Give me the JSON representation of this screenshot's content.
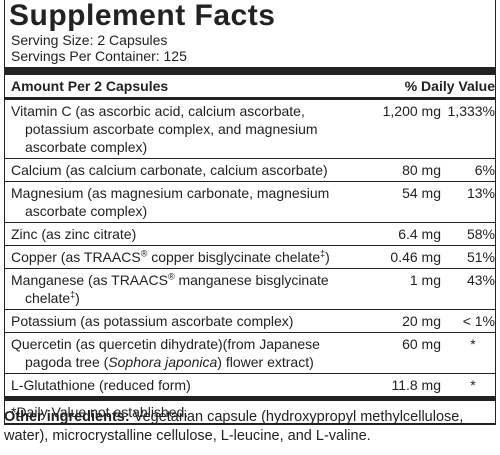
{
  "header": {
    "title": "Supplement Facts",
    "serving_size": "Serving Size: 2 Capsules",
    "servings_per_container": "Servings Per Container: 125"
  },
  "table": {
    "headers": [
      "Amount Per 2 Capsules",
      "% Daily Value"
    ],
    "rows": [
      {
        "name": "Vitamin C (as ascorbic acid, calcium ascorbate, potassium ascorbate complex, and magnesium ascorbate complex)",
        "amount": "1,200 mg",
        "daily_value": "1,333%"
      },
      {
        "name": "Calcium (as calcium carbonate, calcium ascorbate)",
        "amount": "80 mg",
        "daily_value": "6%"
      },
      {
        "name": "Magnesium (as magnesium carbonate, magnesium ascorbate complex)",
        "amount": "54 mg",
        "daily_value": "13%"
      },
      {
        "name": "Zinc (as zinc citrate)",
        "amount": "6.4 mg",
        "daily_value": "58%"
      },
      {
        "name": [
          "Copper (as TRAACS",
          "®",
          " copper bisglycinate chelate",
          "‡",
          ")"
        ],
        "amount": "0.46 mg",
        "daily_value": "51%"
      },
      {
        "name": [
          "Manganese (as TRAACS",
          "®",
          " manganese bisglycinate chelate",
          "‡",
          ")"
        ],
        "amount": "1 mg",
        "daily_value": "43%"
      },
      {
        "name": "Potassium (as potassium ascorbate complex)",
        "amount": "20 mg",
        "daily_value": "< 1%"
      },
      {
        "name": [
          "Quercetin (as quercetin dihydrate)(from Japanese pagoda tree (",
          "Sophora japonica",
          ") flower extract)"
        ],
        "amount": "60 mg",
        "daily_value": "*"
      },
      {
        "name": "L-Glutathione (reduced form)",
        "amount": "11.8 mg",
        "daily_value": "*"
      }
    ]
  },
  "footnote": "*Daily Value not established.",
  "other_ingredients": {
    "label": "Other ingredients:",
    "text": " Vegetarian capsule (hydroxypropyl methylcellulose, water), microcrystalline cellulose, L-leucine, and L-valine."
  }
}
